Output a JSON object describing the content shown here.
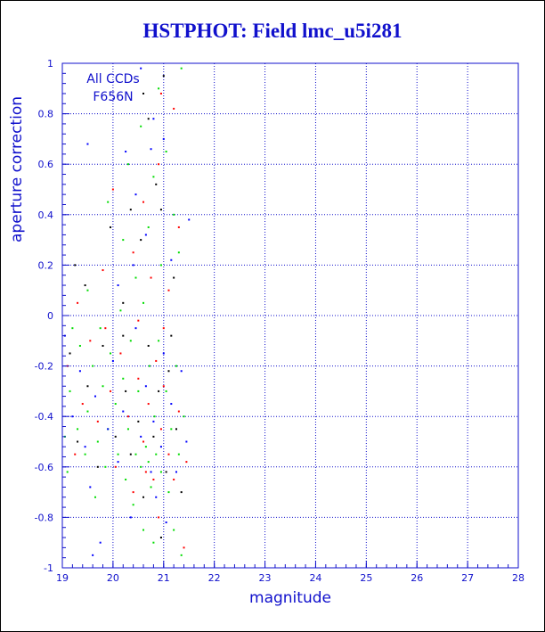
{
  "chart_data": {
    "type": "scatter",
    "title": "HSTPHOT: Field lmc_u5i281",
    "xlabel": "magnitude",
    "ylabel": "aperture correction",
    "xlim": [
      19,
      28
    ],
    "ylim": [
      -1,
      1
    ],
    "xticks": [
      19,
      20,
      21,
      22,
      23,
      24,
      25,
      26,
      27,
      28
    ],
    "yticks": [
      -1,
      -0.8,
      -0.6,
      -0.4,
      -0.2,
      0,
      0.2,
      0.4,
      0.6,
      0.8,
      1
    ],
    "grid": true,
    "annotations": [
      "All CCDs",
      "F656N"
    ],
    "colors": {
      "axis": "#1010cc",
      "grid": "#1010cc",
      "title": "#1010cc"
    },
    "series": [
      {
        "color": "#00dd00",
        "points": [
          [
            19.05,
            -0.48
          ],
          [
            19.1,
            -0.62
          ],
          [
            19.15,
            -0.3
          ],
          [
            19.2,
            -0.05
          ],
          [
            19.3,
            -0.45
          ],
          [
            19.35,
            -0.12
          ],
          [
            19.45,
            -0.55
          ],
          [
            19.5,
            -0.38
          ],
          [
            19.6,
            -0.2
          ],
          [
            19.65,
            -0.72
          ],
          [
            19.7,
            -0.5
          ],
          [
            19.75,
            -0.05
          ],
          [
            19.8,
            -0.28
          ],
          [
            19.85,
            -0.6
          ],
          [
            19.9,
            -0.45
          ],
          [
            19.95,
            -0.15
          ],
          [
            20.05,
            -0.35
          ],
          [
            20.1,
            -0.55
          ],
          [
            20.15,
            0.02
          ],
          [
            20.2,
            -0.25
          ],
          [
            20.25,
            -0.65
          ],
          [
            20.3,
            -0.45
          ],
          [
            20.35,
            -0.1
          ],
          [
            20.4,
            -0.75
          ],
          [
            20.45,
            -0.55
          ],
          [
            20.5,
            -0.3
          ],
          [
            20.55,
            -0.6
          ],
          [
            20.6,
            -0.85
          ],
          [
            20.65,
            -0.52
          ],
          [
            20.7,
            -0.58
          ],
          [
            20.72,
            -0.2
          ],
          [
            20.75,
            -0.68
          ],
          [
            20.8,
            -0.9
          ],
          [
            20.82,
            -0.4
          ],
          [
            20.85,
            -0.55
          ],
          [
            20.9,
            -0.1
          ],
          [
            20.95,
            -0.62
          ],
          [
            21.05,
            -0.3
          ],
          [
            21.1,
            -0.7
          ],
          [
            21.15,
            -0.45
          ],
          [
            21.2,
            -0.85
          ],
          [
            21.25,
            -0.2
          ],
          [
            21.3,
            -0.55
          ],
          [
            21.35,
            -0.95
          ],
          [
            21.4,
            -0.4
          ],
          [
            19.9,
            0.45
          ],
          [
            20.3,
            0.6
          ],
          [
            20.55,
            0.75
          ],
          [
            20.45,
            0.15
          ],
          [
            20.7,
            0.35
          ],
          [
            20.8,
            0.55
          ],
          [
            20.95,
            0.2
          ],
          [
            21.2,
            0.4
          ],
          [
            21.3,
            0.25
          ],
          [
            21.35,
            0.98
          ],
          [
            20.6,
            0.05
          ],
          [
            20.2,
            0.3
          ],
          [
            19.5,
            0.1
          ],
          [
            20.9,
            0.9
          ],
          [
            21.05,
            0.65
          ]
        ]
      },
      {
        "color": "#ff0000",
        "points": [
          [
            19.1,
            -0.2
          ],
          [
            19.25,
            -0.55
          ],
          [
            19.4,
            -0.35
          ],
          [
            19.55,
            -0.1
          ],
          [
            19.7,
            -0.42
          ],
          [
            19.85,
            -0.05
          ],
          [
            19.95,
            -0.3
          ],
          [
            20.05,
            -0.6
          ],
          [
            20.15,
            -0.15
          ],
          [
            20.3,
            -0.4
          ],
          [
            20.4,
            -0.7
          ],
          [
            20.5,
            -0.25
          ],
          [
            20.6,
            -0.5
          ],
          [
            20.65,
            -0.62
          ],
          [
            20.7,
            -0.35
          ],
          [
            20.8,
            -0.65
          ],
          [
            20.85,
            -0.18
          ],
          [
            20.9,
            -0.8
          ],
          [
            20.95,
            -0.45
          ],
          [
            21.0,
            -0.28
          ],
          [
            21.1,
            -0.55
          ],
          [
            21.2,
            -0.65
          ],
          [
            21.3,
            -0.38
          ],
          [
            21.4,
            -0.92
          ],
          [
            21.45,
            -0.58
          ],
          [
            21.0,
            -0.05
          ],
          [
            19.3,
            0.05
          ],
          [
            20.0,
            0.5
          ],
          [
            20.4,
            0.25
          ],
          [
            20.6,
            0.45
          ],
          [
            20.75,
            0.15
          ],
          [
            20.9,
            0.6
          ],
          [
            20.95,
            0.88
          ],
          [
            21.2,
            0.82
          ],
          [
            21.3,
            0.35
          ],
          [
            20.5,
            -0.02
          ],
          [
            19.8,
            0.18
          ],
          [
            21.1,
            0.1
          ]
        ]
      },
      {
        "color": "#0000ff",
        "points": [
          [
            19.05,
            -0.08
          ],
          [
            19.2,
            -0.4
          ],
          [
            19.35,
            -0.22
          ],
          [
            19.45,
            -0.52
          ],
          [
            19.55,
            -0.68
          ],
          [
            19.65,
            -0.32
          ],
          [
            19.75,
            -0.9
          ],
          [
            19.9,
            -0.45
          ],
          [
            20.0,
            -0.18
          ],
          [
            20.1,
            -0.58
          ],
          [
            20.2,
            -0.38
          ],
          [
            20.35,
            -0.8
          ],
          [
            20.45,
            -0.05
          ],
          [
            20.55,
            -0.48
          ],
          [
            20.65,
            -0.28
          ],
          [
            20.75,
            -0.62
          ],
          [
            20.8,
            -0.42
          ],
          [
            20.85,
            -0.72
          ],
          [
            20.95,
            -0.52
          ],
          [
            21.0,
            -0.15
          ],
          [
            21.05,
            -0.82
          ],
          [
            21.15,
            -0.35
          ],
          [
            21.25,
            -0.62
          ],
          [
            21.35,
            -0.22
          ],
          [
            21.45,
            -0.5
          ],
          [
            19.6,
            -0.95
          ],
          [
            19.5,
            0.68
          ],
          [
            20.45,
            0.48
          ],
          [
            20.55,
            0.98
          ],
          [
            20.8,
            0.78
          ],
          [
            20.75,
            0.66
          ],
          [
            21.0,
            0.7
          ],
          [
            20.4,
            0.2
          ],
          [
            20.65,
            0.32
          ],
          [
            21.5,
            0.38
          ],
          [
            20.25,
            0.65
          ],
          [
            20.1,
            0.12
          ],
          [
            21.15,
            0.22
          ]
        ]
      },
      {
        "color": "#000000",
        "points": [
          [
            19.15,
            -0.15
          ],
          [
            19.3,
            -0.5
          ],
          [
            19.5,
            -0.28
          ],
          [
            19.7,
            -0.6
          ],
          [
            19.8,
            -0.12
          ],
          [
            20.05,
            -0.48
          ],
          [
            20.2,
            -0.08
          ],
          [
            20.35,
            -0.55
          ],
          [
            20.5,
            -0.42
          ],
          [
            20.6,
            -0.72
          ],
          [
            20.7,
            -0.12
          ],
          [
            20.8,
            -0.48
          ],
          [
            20.9,
            -0.3
          ],
          [
            20.95,
            -0.88
          ],
          [
            21.05,
            -0.62
          ],
          [
            21.15,
            -0.08
          ],
          [
            21.25,
            -0.45
          ],
          [
            21.35,
            -0.7
          ],
          [
            19.25,
            0.2
          ],
          [
            19.45,
            0.12
          ],
          [
            20.2,
            0.05
          ],
          [
            20.35,
            0.42
          ],
          [
            20.55,
            0.3
          ],
          [
            20.7,
            0.78
          ],
          [
            20.85,
            0.52
          ],
          [
            20.95,
            0.42
          ],
          [
            21.0,
            0.95
          ],
          [
            21.2,
            0.15
          ],
          [
            20.6,
            0.88
          ],
          [
            19.95,
            0.35
          ],
          [
            21.1,
            -0.22
          ],
          [
            20.25,
            -0.3
          ]
        ]
      }
    ]
  }
}
